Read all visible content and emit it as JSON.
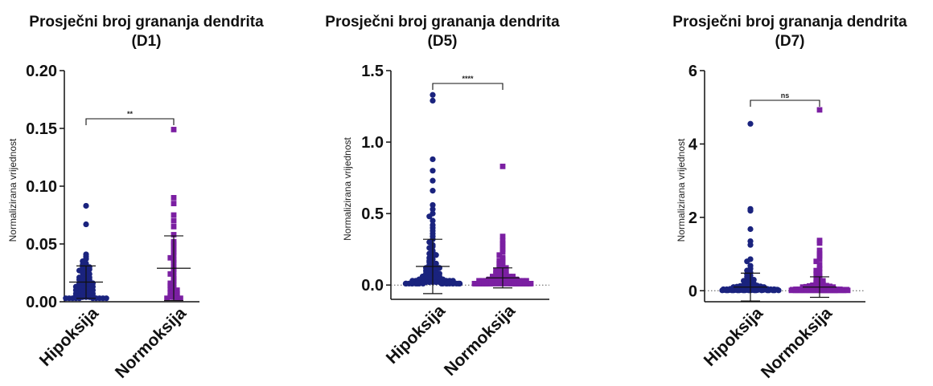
{
  "chart_data": [
    {
      "type": "scatter",
      "title": "Prosječni broj grananja dendrita",
      "subtitle": "(D1)",
      "ylabel": "Normalizirana vrijednost",
      "ylim": [
        0,
        0.2
      ],
      "yticks": [
        "0.00",
        "0.05",
        "0.10",
        "0.15",
        "0.20"
      ],
      "zero_line": false,
      "categories": [
        "Hipoksija",
        "Normoksija"
      ],
      "significance": "**",
      "series": [
        {
          "name": "Hipoksija",
          "marker": "circle",
          "color": "#1a237e",
          "mean": 0.017,
          "sd": 0.014,
          "values": [
            0.083,
            0.067,
            0.041,
            0.039,
            0.037,
            0.035,
            0.033,
            0.032,
            0.031,
            0.03,
            0.03,
            0.029,
            0.028,
            0.028,
            0.027,
            0.026,
            0.025,
            0.024,
            0.023,
            0.022,
            0.021,
            0.021,
            0.02,
            0.02,
            0.019,
            0.019,
            0.018,
            0.017,
            0.017,
            0.016,
            0.016,
            0.015,
            0.015,
            0.014,
            0.014,
            0.013,
            0.013,
            0.012,
            0.012,
            0.011,
            0.011,
            0.01,
            0.01,
            0.009,
            0.009,
            0.008,
            0.008,
            0.007,
            0.007,
            0.006,
            0.006,
            0.006,
            0.005,
            0.005,
            0.005,
            0.004,
            0.004,
            0.004,
            0.003,
            0.003,
            0.003,
            0.003,
            0.003,
            0.003,
            0.003,
            0.003,
            0.003,
            0.003
          ]
        },
        {
          "name": "Normoksija",
          "marker": "square",
          "color": "#7b1fa2",
          "mean": 0.029,
          "sd": 0.028,
          "values": [
            0.149,
            0.09,
            0.085,
            0.075,
            0.07,
            0.065,
            0.058,
            0.052,
            0.05,
            0.048,
            0.045,
            0.043,
            0.04,
            0.038,
            0.036,
            0.034,
            0.03,
            0.028,
            0.026,
            0.024,
            0.022,
            0.02,
            0.018,
            0.016,
            0.015,
            0.014,
            0.012,
            0.011,
            0.01,
            0.009,
            0.008,
            0.007,
            0.006,
            0.005,
            0.005,
            0.004,
            0.004,
            0.003,
            0.003,
            0.003
          ]
        }
      ]
    },
    {
      "type": "scatter",
      "title": "Prosječni broj grananja dendrita",
      "subtitle": "(D5)",
      "ylabel": "Normalizirana vrijednost",
      "ylim": [
        -0.1,
        1.5
      ],
      "yticks": [
        "0.0",
        "0.5",
        "1.0",
        "1.5"
      ],
      "zero_line": true,
      "categories": [
        "Hipoksija",
        "Normoksija"
      ],
      "significance": "****",
      "series": [
        {
          "name": "Hipoksija",
          "marker": "circle",
          "color": "#1a237e",
          "mean": 0.13,
          "sd": 0.19,
          "values": [
            1.33,
            1.29,
            0.88,
            0.8,
            0.73,
            0.66,
            0.56,
            0.53,
            0.5,
            0.48,
            0.45,
            0.42,
            0.4,
            0.38,
            0.36,
            0.34,
            0.32,
            0.3,
            0.28,
            0.27,
            0.26,
            0.24,
            0.23,
            0.22,
            0.21,
            0.2,
            0.19,
            0.18,
            0.17,
            0.16,
            0.16,
            0.15,
            0.14,
            0.14,
            0.13,
            0.12,
            0.12,
            0.11,
            0.11,
            0.1,
            0.1,
            0.09,
            0.09,
            0.08,
            0.08,
            0.08,
            0.07,
            0.07,
            0.07,
            0.06,
            0.06,
            0.06,
            0.05,
            0.05,
            0.05,
            0.05,
            0.04,
            0.04,
            0.04,
            0.04,
            0.03,
            0.03,
            0.03,
            0.03,
            0.03,
            0.02,
            0.02,
            0.02,
            0.02,
            0.02,
            0.02,
            0.01,
            0.01,
            0.01,
            0.01,
            0.01,
            0.01,
            0.01,
            0.01,
            0.01,
            0.01,
            0.01,
            0.01,
            0.01,
            0.01,
            0.01,
            0.01,
            0.01,
            0.01,
            0.01
          ]
        },
        {
          "name": "Normoksija",
          "marker": "square",
          "color": "#7b1fa2",
          "mean": 0.05,
          "sd": 0.07,
          "values": [
            0.83,
            0.34,
            0.31,
            0.29,
            0.27,
            0.25,
            0.23,
            0.21,
            0.19,
            0.18,
            0.17,
            0.16,
            0.15,
            0.14,
            0.13,
            0.12,
            0.11,
            0.11,
            0.1,
            0.1,
            0.09,
            0.09,
            0.08,
            0.08,
            0.07,
            0.07,
            0.07,
            0.06,
            0.06,
            0.06,
            0.06,
            0.05,
            0.05,
            0.05,
            0.05,
            0.04,
            0.04,
            0.04,
            0.04,
            0.04,
            0.03,
            0.03,
            0.03,
            0.03,
            0.03,
            0.03,
            0.02,
            0.02,
            0.02,
            0.02,
            0.02,
            0.02,
            0.02,
            0.01,
            0.01,
            0.01,
            0.01,
            0.01,
            0.01,
            0.01,
            0.01,
            0.01,
            0.01,
            0.01,
            0.01,
            0.01,
            0.01,
            0.01,
            0.01,
            0.01,
            0.01,
            0.01,
            0.01,
            0.01,
            0.01,
            0.01,
            0.01,
            0.01,
            0.01,
            0.01,
            0.01,
            0.01,
            0.01,
            0.01,
            0.01,
            0.01,
            0.01,
            0.01,
            0.01,
            0.01
          ]
        }
      ]
    },
    {
      "type": "scatter",
      "title": "Prosječni broj grananja dendrita",
      "subtitle": "(D7)",
      "ylabel": "Normalizirana vrijednost",
      "ylim": [
        -0.3,
        6
      ],
      "yticks": [
        "0",
        "2",
        "4",
        "6"
      ],
      "zero_line": true,
      "categories": [
        "Hipoksija",
        "Normoksija"
      ],
      "significance": "ns",
      "series": [
        {
          "name": "Hipoksija",
          "marker": "circle",
          "color": "#1a237e",
          "mean": 0.1,
          "sd": 0.38,
          "values": [
            4.55,
            2.23,
            2.18,
            1.68,
            1.35,
            1.25,
            0.86,
            0.8,
            0.68,
            0.6,
            0.55,
            0.5,
            0.45,
            0.42,
            0.38,
            0.35,
            0.32,
            0.3,
            0.27,
            0.25,
            0.22,
            0.2,
            0.18,
            0.17,
            0.16,
            0.15,
            0.14,
            0.13,
            0.12,
            0.11,
            0.1,
            0.1,
            0.09,
            0.09,
            0.08,
            0.08,
            0.07,
            0.07,
            0.06,
            0.06,
            0.06,
            0.05,
            0.05,
            0.05,
            0.04,
            0.04,
            0.04,
            0.04,
            0.03,
            0.03,
            0.03,
            0.03,
            0.03,
            0.02,
            0.02,
            0.02,
            0.02,
            0.02,
            0.02,
            0.02,
            0.02,
            0.01,
            0.01,
            0.01,
            0.01,
            0.01,
            0.01,
            0.01,
            0.01,
            0.01,
            0.01,
            0.01,
            0.01,
            0.01,
            0.01,
            0.01,
            0.01,
            0.01,
            0.01,
            0.01
          ]
        },
        {
          "name": "Normoksija",
          "marker": "square",
          "color": "#7b1fa2",
          "mean": 0.1,
          "sd": 0.28,
          "values": [
            4.93,
            1.37,
            1.3,
            1.1,
            1.0,
            0.95,
            0.85,
            0.8,
            0.7,
            0.6,
            0.55,
            0.5,
            0.45,
            0.4,
            0.35,
            0.3,
            0.27,
            0.25,
            0.22,
            0.2,
            0.18,
            0.17,
            0.16,
            0.15,
            0.14,
            0.13,
            0.12,
            0.11,
            0.1,
            0.1,
            0.09,
            0.08,
            0.08,
            0.07,
            0.07,
            0.06,
            0.06,
            0.05,
            0.05,
            0.05,
            0.04,
            0.04,
            0.04,
            0.04,
            0.03,
            0.03,
            0.03,
            0.03,
            0.03,
            0.02,
            0.02,
            0.02,
            0.02,
            0.02,
            0.02,
            0.02,
            0.01,
            0.01,
            0.01,
            0.01,
            0.01,
            0.01,
            0.01,
            0.01,
            0.01,
            0.01,
            0.01,
            0.01,
            0.01,
            0.01,
            0.01,
            0.01,
            0.01,
            0.01,
            0.01,
            0.01,
            0.01,
            0.01,
            0.01,
            0.01
          ]
        }
      ]
    }
  ]
}
